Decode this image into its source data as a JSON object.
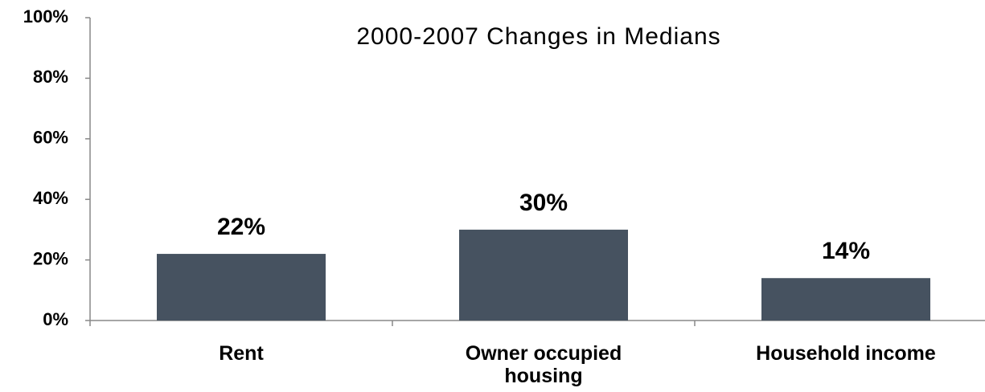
{
  "chart_data": {
    "type": "bar",
    "title": "2000-2007 Changes in Medians",
    "categories": [
      "Rent",
      "Owner occupied housing",
      "Household income"
    ],
    "values": [
      22,
      30,
      14
    ],
    "value_labels": [
      "22%",
      "30%",
      "14%"
    ],
    "color": "#465260",
    "ylim": [
      0,
      100
    ],
    "yticks": [
      {
        "value": 0,
        "label": "0%"
      },
      {
        "value": 20,
        "label": "20%"
      },
      {
        "value": 40,
        "label": "40%"
      },
      {
        "value": 60,
        "label": "60%"
      },
      {
        "value": 80,
        "label": "80%"
      },
      {
        "value": 100,
        "label": "100%"
      }
    ],
    "grid": false
  }
}
